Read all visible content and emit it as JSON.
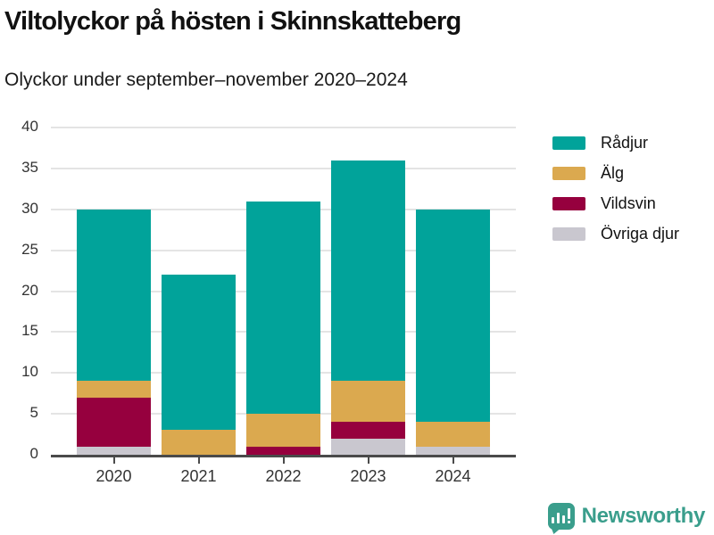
{
  "header": {
    "title": "Viltolyckor på hösten i Skinnskatteberg",
    "subtitle": "Olyckor under september–november 2020–2024"
  },
  "chart_data": {
    "type": "bar",
    "stacked": true,
    "title": "Viltolyckor på hösten i Skinnskatteberg",
    "subtitle": "Olyckor under september–november 2020–2024",
    "categories": [
      "2020",
      "2021",
      "2022",
      "2023",
      "2024"
    ],
    "series": [
      {
        "name": "Rådjur",
        "color": "#01A39A",
        "values": [
          21,
          19,
          26,
          27,
          26
        ]
      },
      {
        "name": "Älg",
        "color": "#DBA94F",
        "values": [
          2,
          3,
          4,
          5,
          3
        ]
      },
      {
        "name": "Vildsvin",
        "color": "#96003E",
        "values": [
          6,
          0,
          1,
          2,
          0
        ]
      },
      {
        "name": "Övriga djur",
        "color": "#C9C7CF",
        "values": [
          1,
          0,
          0,
          2,
          1
        ]
      }
    ],
    "totals": [
      30,
      22,
      31,
      36,
      30
    ],
    "ylim": [
      0,
      40
    ],
    "yticks": [
      0,
      5,
      10,
      15,
      20,
      25,
      30,
      35,
      40
    ],
    "xlabel": "",
    "ylabel": "",
    "grid": true,
    "grid_color": "#E4E4E4",
    "axis_color": "#4A4A4A",
    "legend_position": "right"
  },
  "footer": {
    "brand": "Newsworthy",
    "brand_color": "#3A9E8C",
    "logo_icon": "bar-chart-speech-bubble-icon"
  }
}
